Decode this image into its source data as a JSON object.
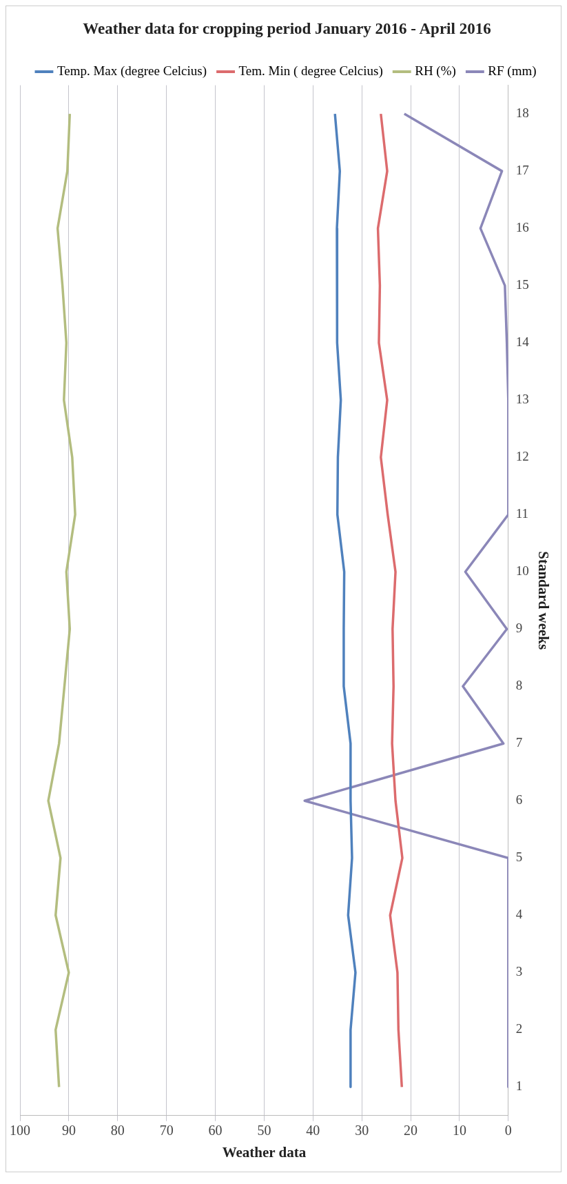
{
  "chart_data": {
    "type": "line",
    "orientation": "horizontal",
    "title": "Weather data for cropping period January 2016 - April 2016",
    "xlabel": "Weather data",
    "ylabel": "Standard weeks",
    "categories": [
      "18",
      "17",
      "16",
      "15",
      "14",
      "13",
      "12",
      "11",
      "10",
      "9",
      "8",
      "7",
      "6",
      "5",
      "4",
      "3",
      "2",
      "1"
    ],
    "series": [
      {
        "name": "Temp. Max (degree Celcius)",
        "color": "#4f81bd",
        "values": [
          35.5,
          34.5,
          35.1,
          35.1,
          35,
          34.3,
          34.9,
          35,
          33.6,
          33.7,
          33.7,
          32.3,
          32.3,
          32,
          32.8,
          31.3,
          32.3,
          32.3
        ]
      },
      {
        "name": "Tem. Min ( degree Celcius)",
        "color": "#dc6b6d",
        "values": [
          26.1,
          24.8,
          26.7,
          26.3,
          26.5,
          24.8,
          26.1,
          24.7,
          23.1,
          23.7,
          23.5,
          23.8,
          23.1,
          21.7,
          24.2,
          22.7,
          22.5,
          21.8
        ]
      },
      {
        "name": "RH (%)",
        "color": "#b3bd7f",
        "values": [
          89.8,
          90.3,
          92.3,
          91.3,
          90.5,
          91,
          89.3,
          88.7,
          90.5,
          89.8,
          90.9,
          92,
          94.2,
          91.7,
          92.7,
          90,
          92.7,
          92
        ]
      },
      {
        "name": "RF (mm)",
        "color": "#8b87b8",
        "values": [
          21.3,
          1.3,
          5.7,
          0.7,
          0.3,
          0,
          0,
          0,
          8.8,
          0.3,
          9.3,
          1,
          41.7,
          0,
          0,
          0,
          0,
          0
        ]
      }
    ],
    "xlim": [
      100,
      0
    ],
    "xticks": [
      100,
      90,
      80,
      70,
      60,
      50,
      40,
      30,
      20,
      10,
      0
    ],
    "grid": "x",
    "legend": "top",
    "marker": "none"
  }
}
